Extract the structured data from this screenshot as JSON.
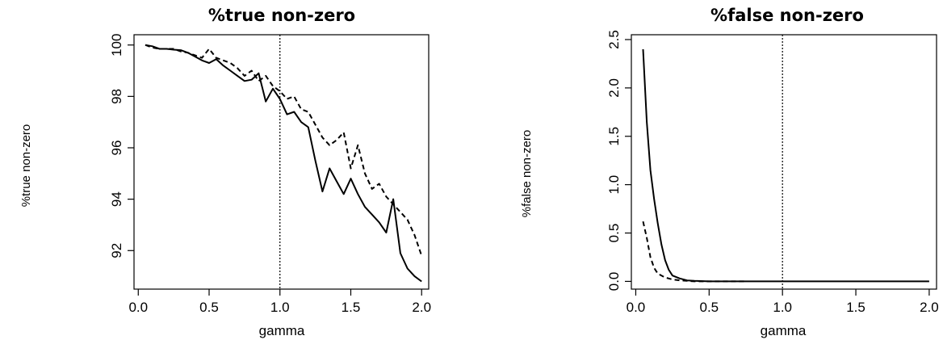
{
  "chart_data": [
    {
      "type": "line",
      "title": "%true non-zero",
      "xlabel": "gamma",
      "ylabel": "%true non-zero",
      "xlim": [
        -0.03,
        2.05
      ],
      "ylim": [
        90.5,
        100.4
      ],
      "xticks": [
        0.0,
        0.5,
        1.0,
        1.5,
        2.0
      ],
      "xtick_labels": [
        "0.0",
        "0.5",
        "1.0",
        "1.5",
        "2.0"
      ],
      "yticks": [
        92,
        94,
        96,
        98,
        100
      ],
      "ytick_labels": [
        "92",
        "94",
        "96",
        "98",
        "100"
      ],
      "vline": 1.0,
      "grid": false,
      "series": [
        {
          "style": "solid",
          "x": [
            0.05,
            0.1,
            0.15,
            0.2,
            0.25,
            0.3,
            0.35,
            0.4,
            0.45,
            0.5,
            0.55,
            0.6,
            0.65,
            0.7,
            0.75,
            0.8,
            0.85,
            0.9,
            0.95,
            1.0,
            1.05,
            1.1,
            1.15,
            1.2,
            1.25,
            1.3,
            1.35,
            1.4,
            1.45,
            1.5,
            1.55,
            1.6,
            1.65,
            1.7,
            1.75,
            1.8,
            1.85,
            1.9,
            1.95,
            2.0
          ],
          "y": [
            100.0,
            99.95,
            99.85,
            99.85,
            99.82,
            99.8,
            99.7,
            99.55,
            99.4,
            99.3,
            99.45,
            99.2,
            99.0,
            98.8,
            98.6,
            98.65,
            98.9,
            97.8,
            98.3,
            97.9,
            97.3,
            97.4,
            97.0,
            96.8,
            95.5,
            94.3,
            95.2,
            94.7,
            94.2,
            94.8,
            94.2,
            93.7,
            93.4,
            93.1,
            92.7,
            94.0,
            91.9,
            91.3,
            91.0,
            90.8
          ]
        },
        {
          "style": "dashed",
          "x": [
            0.05,
            0.1,
            0.15,
            0.2,
            0.25,
            0.3,
            0.35,
            0.4,
            0.45,
            0.5,
            0.55,
            0.6,
            0.65,
            0.7,
            0.75,
            0.8,
            0.85,
            0.9,
            0.95,
            1.0,
            1.05,
            1.1,
            1.15,
            1.2,
            1.25,
            1.3,
            1.35,
            1.4,
            1.45,
            1.5,
            1.55,
            1.6,
            1.65,
            1.7,
            1.75,
            1.8,
            1.85,
            1.9,
            1.95,
            2.0
          ],
          "y": [
            100.0,
            99.9,
            99.85,
            99.85,
            99.85,
            99.75,
            99.7,
            99.6,
            99.5,
            99.85,
            99.5,
            99.4,
            99.3,
            99.1,
            98.8,
            99.0,
            98.6,
            98.8,
            98.4,
            98.2,
            97.9,
            98.0,
            97.5,
            97.4,
            96.9,
            96.4,
            96.1,
            96.3,
            96.6,
            95.2,
            96.1,
            95.0,
            94.4,
            94.6,
            94.1,
            93.8,
            93.5,
            93.2,
            92.6,
            91.8
          ]
        }
      ]
    },
    {
      "type": "line",
      "title": "%false non-zero",
      "xlabel": "gamma",
      "ylabel": "%false non-zero",
      "xlim": [
        -0.03,
        2.05
      ],
      "ylim": [
        -0.08,
        2.55
      ],
      "xticks": [
        0.0,
        0.5,
        1.0,
        1.5,
        2.0
      ],
      "xtick_labels": [
        "0.0",
        "0.5",
        "1.0",
        "1.5",
        "2.0"
      ],
      "yticks": [
        0.0,
        0.5,
        1.0,
        1.5,
        2.0,
        2.5
      ],
      "ytick_labels": [
        "0.0",
        "0.5",
        "1.0",
        "1.5",
        "2.0",
        "2.5"
      ],
      "vline": 1.0,
      "grid": false,
      "series": [
        {
          "style": "solid",
          "x": [
            0.05,
            0.075,
            0.1,
            0.125,
            0.15,
            0.175,
            0.2,
            0.225,
            0.25,
            0.3,
            0.35,
            0.4,
            0.5,
            0.6,
            0.75,
            1.0,
            1.5,
            2.0
          ],
          "y": [
            2.4,
            1.65,
            1.15,
            0.85,
            0.6,
            0.38,
            0.22,
            0.12,
            0.06,
            0.03,
            0.01,
            0.005,
            0.0,
            0.0,
            0.0,
            0.0,
            0.0,
            0.0
          ]
        },
        {
          "style": "dashed",
          "x": [
            0.05,
            0.075,
            0.1,
            0.125,
            0.15,
            0.2,
            0.25,
            0.3,
            0.35,
            0.4,
            0.5,
            0.6,
            0.75
          ],
          "y": [
            0.62,
            0.45,
            0.25,
            0.14,
            0.08,
            0.04,
            0.02,
            0.01,
            0.005,
            0.0,
            0.0,
            0.0,
            0.0
          ]
        }
      ]
    }
  ]
}
